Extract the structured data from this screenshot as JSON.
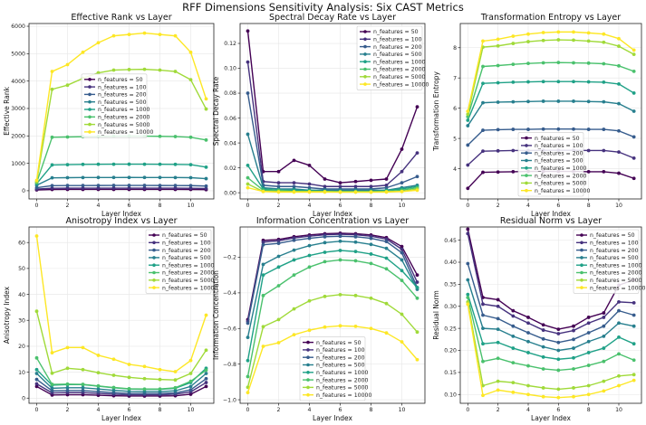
{
  "figure_title": "RFF Dimensions Sensitivity Analysis: Six CAST Metrics",
  "legend_labels": [
    "n_features = 50",
    "n_features = 100",
    "n_features = 200",
    "n_features = 500",
    "n_features = 1000",
    "n_features = 2000",
    "n_features = 5000",
    "n_features = 10000"
  ],
  "series_colors": [
    "#440154",
    "#46327e",
    "#365c8d",
    "#277f8e",
    "#1fa187",
    "#4ac16d",
    "#a0da39",
    "#fde725"
  ],
  "chart_data": [
    {
      "type": "line",
      "title": "Effective Rank vs Layer",
      "xlabel": "Layer Index",
      "ylabel": "Effective Rank",
      "xlim": [
        -0.5,
        11.5
      ],
      "ylim": [
        -300,
        6100
      ],
      "xticks": [
        0,
        2,
        4,
        6,
        8,
        10
      ],
      "yticks": [
        0,
        1000,
        2000,
        3000,
        4000,
        5000,
        6000
      ],
      "legend_position": "center-left",
      "x": [
        0,
        1,
        2,
        3,
        4,
        5,
        6,
        7,
        8,
        9,
        10,
        11
      ],
      "series": [
        {
          "name": "n_features = 50",
          "values": [
            30,
            45,
            47,
            48,
            48,
            48,
            48,
            48,
            48,
            47,
            46,
            40
          ]
        },
        {
          "name": "n_features = 100",
          "values": [
            60,
            90,
            92,
            93,
            93,
            94,
            94,
            94,
            93,
            93,
            91,
            80
          ]
        },
        {
          "name": "n_features = 200",
          "values": [
            110,
            185,
            188,
            190,
            191,
            192,
            192,
            192,
            191,
            190,
            187,
            170
          ]
        },
        {
          "name": "n_features = 500",
          "values": [
            200,
            470,
            475,
            480,
            482,
            483,
            484,
            483,
            482,
            480,
            475,
            440
          ]
        },
        {
          "name": "n_features = 1000",
          "values": [
            260,
            940,
            950,
            960,
            965,
            967,
            968,
            967,
            965,
            960,
            950,
            860
          ]
        },
        {
          "name": "n_features = 2000",
          "values": [
            300,
            1950,
            1960,
            1970,
            1980,
            1990,
            1995,
            1990,
            1985,
            1975,
            1950,
            1850
          ]
        },
        {
          "name": "n_features = 5000",
          "values": [
            330,
            3700,
            3850,
            4100,
            4300,
            4400,
            4420,
            4430,
            4400,
            4350,
            4050,
            2980
          ]
        },
        {
          "name": "n_features = 10000",
          "values": [
            380,
            4350,
            4600,
            5050,
            5400,
            5650,
            5700,
            5750,
            5700,
            5650,
            5050,
            3350
          ]
        }
      ]
    },
    {
      "type": "line",
      "title": "Spectral Decay Rate vs Layer",
      "xlabel": "Layer Index",
      "ylabel": "Spectral Decay Rate",
      "xlim": [
        -0.5,
        11.5
      ],
      "ylim": [
        -0.005,
        0.136
      ],
      "xticks": [
        0,
        2,
        4,
        6,
        8,
        10
      ],
      "yticks": [
        0.0,
        0.02,
        0.04,
        0.06,
        0.08,
        0.1,
        0.12
      ],
      "ytick_labels": [
        "0.00",
        "0.02",
        "0.04",
        "0.06",
        "0.08",
        "0.10",
        "0.12"
      ],
      "legend_position": "top-right",
      "x": [
        0,
        1,
        2,
        3,
        4,
        5,
        6,
        7,
        8,
        9,
        10,
        11
      ],
      "series": [
        {
          "name": "n_features = 50",
          "values": [
            0.13,
            0.017,
            0.017,
            0.026,
            0.022,
            0.011,
            0.008,
            0.009,
            0.01,
            0.011,
            0.035,
            0.069
          ]
        },
        {
          "name": "n_features = 100",
          "values": [
            0.105,
            0.009,
            0.008,
            0.008,
            0.007,
            0.005,
            0.005,
            0.005,
            0.005,
            0.006,
            0.017,
            0.032
          ]
        },
        {
          "name": "n_features = 200",
          "values": [
            0.08,
            0.006,
            0.005,
            0.005,
            0.004,
            0.003,
            0.003,
            0.003,
            0.003,
            0.004,
            0.008,
            0.013
          ]
        },
        {
          "name": "n_features = 500",
          "values": [
            0.047,
            0.004,
            0.003,
            0.003,
            0.002,
            0.002,
            0.002,
            0.002,
            0.002,
            0.002,
            0.004,
            0.006
          ]
        },
        {
          "name": "n_features = 1000",
          "values": [
            0.022,
            0.003,
            0.002,
            0.002,
            0.002,
            0.001,
            0.001,
            0.001,
            0.001,
            0.002,
            0.003,
            0.005
          ]
        },
        {
          "name": "n_features = 2000",
          "values": [
            0.012,
            0.002,
            0.002,
            0.001,
            0.001,
            0.001,
            0.001,
            0.001,
            0.001,
            0.001,
            0.002,
            0.004
          ]
        },
        {
          "name": "n_features = 5000",
          "values": [
            0.007,
            0.001,
            0.001,
            0.001,
            0.001,
            0.001,
            0.0005,
            0.0005,
            0.0005,
            0.001,
            0.001,
            0.003
          ]
        },
        {
          "name": "n_features = 10000",
          "values": [
            0.004,
            0.001,
            0.0005,
            0.0005,
            0.0005,
            0.0005,
            0.0005,
            0.0005,
            0.0005,
            0.0005,
            0.001,
            0.002
          ]
        }
      ]
    },
    {
      "type": "line",
      "title": "Transformation Entropy vs Layer",
      "xlabel": "Layer Index",
      "ylabel": "Transformation Entropy",
      "xlim": [
        -0.5,
        11.5
      ],
      "ylim": [
        3.0,
        8.8
      ],
      "xticks": [
        0,
        2,
        4,
        6,
        8,
        10
      ],
      "yticks": [
        4,
        5,
        6,
        7,
        8
      ],
      "legend_position": "bottom-center",
      "x": [
        0,
        1,
        2,
        3,
        4,
        5,
        6,
        7,
        8,
        9,
        10,
        11
      ],
      "series": [
        {
          "name": "n_features = 50",
          "values": [
            3.35,
            3.88,
            3.89,
            3.9,
            3.91,
            3.91,
            3.91,
            3.91,
            3.9,
            3.9,
            3.85,
            3.68
          ]
        },
        {
          "name": "n_features = 100",
          "values": [
            4.12,
            4.58,
            4.59,
            4.6,
            4.6,
            4.61,
            4.61,
            4.61,
            4.6,
            4.6,
            4.55,
            4.35
          ]
        },
        {
          "name": "n_features = 200",
          "values": [
            4.78,
            5.27,
            5.29,
            5.3,
            5.3,
            5.31,
            5.31,
            5.31,
            5.3,
            5.3,
            5.25,
            5.05
          ]
        },
        {
          "name": "n_features = 500",
          "values": [
            5.42,
            6.18,
            6.2,
            6.21,
            6.22,
            6.23,
            6.23,
            6.23,
            6.22,
            6.21,
            6.15,
            5.9
          ]
        },
        {
          "name": "n_features = 1000",
          "values": [
            5.6,
            6.82,
            6.84,
            6.86,
            6.87,
            6.88,
            6.88,
            6.88,
            6.87,
            6.86,
            6.8,
            6.5
          ]
        },
        {
          "name": "n_features = 2000",
          "values": [
            5.72,
            7.38,
            7.41,
            7.45,
            7.48,
            7.5,
            7.51,
            7.5,
            7.49,
            7.47,
            7.4,
            7.22
          ]
        },
        {
          "name": "n_features = 5000",
          "values": [
            5.8,
            8.02,
            8.06,
            8.14,
            8.2,
            8.24,
            8.26,
            8.25,
            8.22,
            8.18,
            8.05,
            7.78
          ]
        },
        {
          "name": "n_features = 10000",
          "values": [
            5.9,
            8.22,
            8.28,
            8.38,
            8.45,
            8.5,
            8.52,
            8.52,
            8.49,
            8.45,
            8.3,
            7.92
          ]
        }
      ]
    },
    {
      "type": "line",
      "title": "Anisotropy Index vs Layer",
      "xlabel": "Layer Index",
      "ylabel": "Anisotropy Index",
      "xlim": [
        -0.5,
        11.5
      ],
      "ylim": [
        -2,
        66
      ],
      "xticks": [
        0,
        2,
        4,
        6,
        8,
        10
      ],
      "yticks": [
        0,
        10,
        20,
        30,
        40,
        50,
        60
      ],
      "legend_position": "top-right",
      "x": [
        0,
        1,
        2,
        3,
        4,
        5,
        6,
        7,
        8,
        9,
        10,
        11
      ],
      "series": [
        {
          "name": "n_features = 50",
          "values": [
            4.5,
            1.2,
            1.3,
            1.3,
            1.1,
            0.9,
            0.8,
            0.8,
            0.8,
            0.9,
            1.5,
            4.5
          ]
        },
        {
          "name": "n_features = 100",
          "values": [
            5.5,
            2.0,
            2.1,
            2.1,
            1.8,
            1.5,
            1.3,
            1.3,
            1.3,
            1.5,
            2.4,
            6.0
          ]
        },
        {
          "name": "n_features = 200",
          "values": [
            7.2,
            2.8,
            2.9,
            2.9,
            2.5,
            2.1,
            1.8,
            1.8,
            1.8,
            2.0,
            3.2,
            7.5
          ]
        },
        {
          "name": "n_features = 500",
          "values": [
            9.5,
            3.8,
            4.0,
            4.0,
            3.5,
            3.0,
            2.6,
            2.5,
            2.5,
            2.8,
            4.5,
            9.5
          ]
        },
        {
          "name": "n_features = 1000",
          "values": [
            11.0,
            5.0,
            5.2,
            5.2,
            4.6,
            4.0,
            3.5,
            3.4,
            3.4,
            3.8,
            6.0,
            11.5
          ]
        },
        {
          "name": "n_features = 2000",
          "values": [
            15.5,
            5.3,
            5.4,
            5.3,
            4.7,
            4.1,
            3.6,
            3.5,
            3.5,
            4.0,
            6.5,
            10.8
          ]
        },
        {
          "name": "n_features = 5000",
          "values": [
            33.5,
            9.6,
            11.5,
            11.0,
            9.8,
            8.8,
            8.0,
            7.5,
            7.2,
            7.0,
            9.5,
            18.5
          ]
        },
        {
          "name": "n_features = 10000",
          "values": [
            62.5,
            17.5,
            19.5,
            19.5,
            16.5,
            15.0,
            13.0,
            12.2,
            11.0,
            10.2,
            14.5,
            32.0
          ]
        }
      ]
    },
    {
      "type": "line",
      "title": "Information Concentration vs Layer",
      "xlabel": "Layer Index",
      "ylabel": "Information Concentration",
      "xlim": [
        -0.5,
        11.5
      ],
      "ylim": [
        -1.02,
        -0.03
      ],
      "xticks": [
        0,
        2,
        4,
        6,
        8,
        10
      ],
      "yticks": [
        -1.0,
        -0.8,
        -0.6,
        -0.4,
        -0.2
      ],
      "ytick_labels": [
        "−1.0",
        "−0.8",
        "−0.6",
        "−0.4",
        "−0.2"
      ],
      "legend_position": "bottom-center",
      "x": [
        0,
        1,
        2,
        3,
        4,
        5,
        6,
        7,
        8,
        9,
        10,
        11
      ],
      "series": [
        {
          "name": "n_features = 50",
          "values": [
            -0.55,
            -0.105,
            -0.1,
            -0.085,
            -0.075,
            -0.068,
            -0.065,
            -0.068,
            -0.075,
            -0.09,
            -0.14,
            -0.3
          ]
        },
        {
          "name": "n_features = 100",
          "values": [
            -0.56,
            -0.115,
            -0.108,
            -0.092,
            -0.082,
            -0.074,
            -0.071,
            -0.074,
            -0.082,
            -0.098,
            -0.155,
            -0.34
          ]
        },
        {
          "name": "n_features = 200",
          "values": [
            -0.57,
            -0.13,
            -0.122,
            -0.105,
            -0.094,
            -0.085,
            -0.082,
            -0.085,
            -0.094,
            -0.112,
            -0.175,
            -0.37
          ]
        },
        {
          "name": "n_features = 500",
          "values": [
            -0.65,
            -0.24,
            -0.195,
            -0.16,
            -0.135,
            -0.118,
            -0.11,
            -0.115,
            -0.128,
            -0.15,
            -0.215,
            -0.38
          ]
        },
        {
          "name": "n_features = 1000",
          "values": [
            -0.78,
            -0.3,
            -0.255,
            -0.215,
            -0.19,
            -0.172,
            -0.162,
            -0.168,
            -0.182,
            -0.205,
            -0.275,
            -0.37
          ]
        },
        {
          "name": "n_features = 2000",
          "values": [
            -0.87,
            -0.415,
            -0.36,
            -0.3,
            -0.255,
            -0.225,
            -0.215,
            -0.22,
            -0.235,
            -0.265,
            -0.33,
            -0.43
          ]
        },
        {
          "name": "n_features = 5000",
          "values": [
            -0.93,
            -0.59,
            -0.55,
            -0.49,
            -0.445,
            -0.42,
            -0.41,
            -0.415,
            -0.43,
            -0.46,
            -0.52,
            -0.62
          ]
        },
        {
          "name": "n_features = 10000",
          "values": [
            -0.96,
            -0.7,
            -0.68,
            -0.635,
            -0.61,
            -0.592,
            -0.585,
            -0.588,
            -0.6,
            -0.625,
            -0.675,
            -0.775
          ]
        }
      ]
    },
    {
      "type": "line",
      "title": "Residual Norm vs Layer",
      "xlabel": "Layer Index",
      "ylabel": "Residual Norm",
      "xlim": [
        -0.5,
        11.5
      ],
      "ylim": [
        0.08,
        0.48
      ],
      "xticks": [
        0,
        2,
        4,
        6,
        8,
        10
      ],
      "yticks": [
        0.1,
        0.15,
        0.2,
        0.25,
        0.3,
        0.35,
        0.4,
        0.45
      ],
      "ytick_labels": [
        "0.10",
        "0.15",
        "0.20",
        "0.25",
        "0.30",
        "0.35",
        "0.40",
        "0.45"
      ],
      "legend_position": "top-right",
      "x": [
        0,
        1,
        2,
        3,
        4,
        5,
        6,
        7,
        8,
        9,
        10,
        11
      ],
      "series": [
        {
          "name": "n_features = 50",
          "values": [
            0.475,
            0.32,
            0.315,
            0.29,
            0.275,
            0.258,
            0.248,
            0.255,
            0.275,
            0.285,
            0.348,
            0.36
          ]
        },
        {
          "name": "n_features = 100",
          "values": [
            0.465,
            0.305,
            0.3,
            0.278,
            0.262,
            0.246,
            0.238,
            0.245,
            0.262,
            0.275,
            0.31,
            0.308
          ]
        },
        {
          "name": "n_features = 200",
          "values": [
            0.397,
            0.28,
            0.272,
            0.255,
            0.24,
            0.226,
            0.218,
            0.225,
            0.24,
            0.255,
            0.29,
            0.28
          ]
        },
        {
          "name": "n_features = 500",
          "values": [
            0.36,
            0.25,
            0.248,
            0.232,
            0.22,
            0.208,
            0.2,
            0.205,
            0.22,
            0.232,
            0.262,
            0.255
          ]
        },
        {
          "name": "n_features = 1000",
          "values": [
            0.327,
            0.215,
            0.218,
            0.205,
            0.195,
            0.185,
            0.18,
            0.183,
            0.195,
            0.205,
            0.23,
            0.215
          ]
        },
        {
          "name": "n_features = 2000",
          "values": [
            0.32,
            0.175,
            0.182,
            0.172,
            0.165,
            0.158,
            0.155,
            0.158,
            0.166,
            0.175,
            0.192,
            0.178
          ]
        },
        {
          "name": "n_features = 5000",
          "values": [
            0.31,
            0.12,
            0.13,
            0.127,
            0.12,
            0.115,
            0.112,
            0.115,
            0.12,
            0.13,
            0.142,
            0.145
          ]
        },
        {
          "name": "n_features = 10000",
          "values": [
            0.305,
            0.098,
            0.11,
            0.105,
            0.1,
            0.095,
            0.093,
            0.095,
            0.1,
            0.108,
            0.12,
            0.132
          ]
        }
      ]
    }
  ]
}
